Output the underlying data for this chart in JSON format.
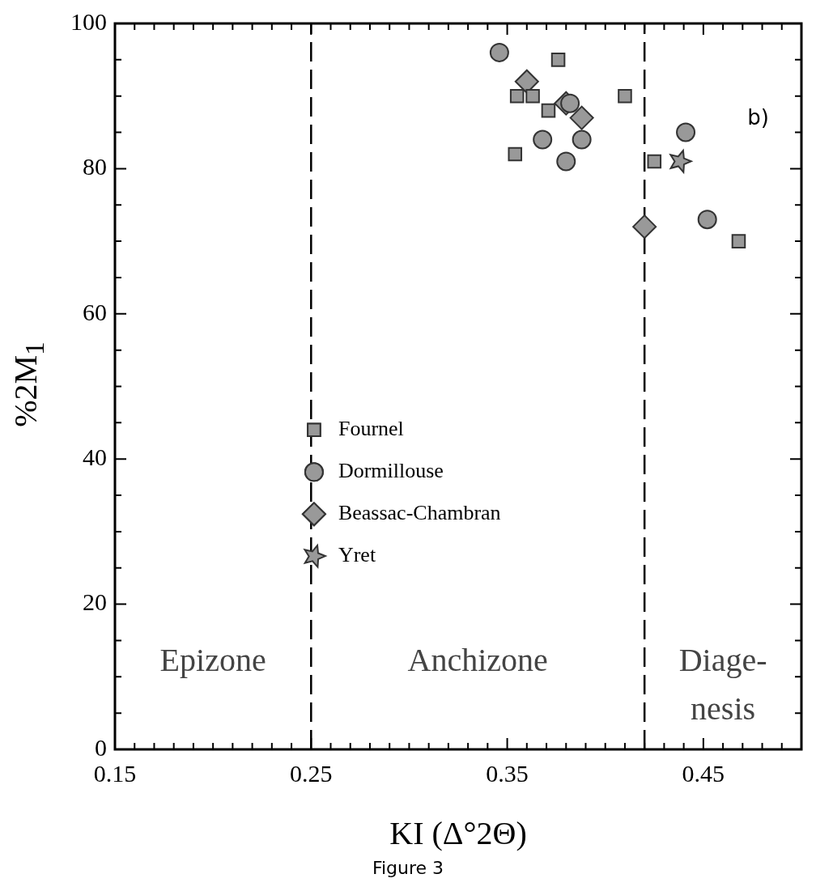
{
  "chart_data": {
    "type": "scatter",
    "xlabel": "KI (Δ°2Θ)",
    "ylabel": "%2M$_{1}$",
    "xlim": [
      0.15,
      0.5
    ],
    "ylim": [
      0,
      100
    ],
    "xticks": [
      {
        "value": 0.15,
        "label": "0.15"
      },
      {
        "value": 0.16,
        "label": null
      },
      {
        "value": 0.17,
        "label": null
      },
      {
        "value": 0.18,
        "label": null
      },
      {
        "value": 0.19,
        "label": null
      },
      {
        "value": 0.2,
        "label": null
      },
      {
        "value": 0.21,
        "label": null
      },
      {
        "value": 0.22,
        "label": null
      },
      {
        "value": 0.23,
        "label": null
      },
      {
        "value": 0.24,
        "label": null
      },
      {
        "value": 0.25,
        "label": "0.25"
      },
      {
        "value": 0.26,
        "label": null
      },
      {
        "value": 0.27,
        "label": null
      },
      {
        "value": 0.28,
        "label": null
      },
      {
        "value": 0.29,
        "label": null
      },
      {
        "value": 0.3,
        "label": null
      },
      {
        "value": 0.31,
        "label": null
      },
      {
        "value": 0.32,
        "label": null
      },
      {
        "value": 0.33,
        "label": null
      },
      {
        "value": 0.34,
        "label": null
      },
      {
        "value": 0.35,
        "label": "0.35"
      },
      {
        "value": 0.36,
        "label": null
      },
      {
        "value": 0.37,
        "label": null
      },
      {
        "value": 0.38,
        "label": null
      },
      {
        "value": 0.39,
        "label": null
      },
      {
        "value": 0.4,
        "label": null
      },
      {
        "value": 0.41,
        "label": null
      },
      {
        "value": 0.42,
        "label": null
      },
      {
        "value": 0.43,
        "label": null
      },
      {
        "value": 0.44,
        "label": null
      },
      {
        "value": 0.45,
        "label": "0.45"
      },
      {
        "value": 0.46,
        "label": null
      },
      {
        "value": 0.47,
        "label": null
      },
      {
        "value": 0.48,
        "label": null
      },
      {
        "value": 0.49,
        "label": null
      },
      {
        "value": 0.5,
        "label": null
      }
    ],
    "yticks": [
      0,
      {
        "value": 5,
        "label": null
      },
      {
        "value": 10,
        "label": null
      },
      {
        "value": 15,
        "label": null
      },
      20,
      {
        "value": 25,
        "label": null
      },
      {
        "value": 30,
        "label": null
      },
      {
        "value": 35,
        "label": null
      },
      40,
      {
        "value": 45,
        "label": null
      },
      {
        "value": 50,
        "label": null
      },
      {
        "value": 55,
        "label": null
      },
      60,
      {
        "value": 65,
        "label": null
      },
      {
        "value": 70,
        "label": null
      },
      {
        "value": 75,
        "label": null
      },
      80,
      {
        "value": 85,
        "label": null
      },
      {
        "value": 90,
        "label": null
      },
      {
        "value": 95,
        "label": null
      },
      100
    ],
    "grid": false,
    "legend": "center",
    "series": [
      {
        "name": "Fournel",
        "marker": "square",
        "color": "#999999",
        "x": [
          0.376,
          0.355,
          0.363,
          0.371,
          0.354,
          0.41,
          0.425,
          0.468
        ],
        "values": [
          95,
          90,
          90,
          88,
          82,
          90,
          81,
          70
        ]
      },
      {
        "name": "Dormillouse",
        "marker": "circle",
        "color": "#999999",
        "x": [
          0.346,
          0.368,
          0.388,
          0.38,
          0.382,
          0.441,
          0.452
        ],
        "values": [
          96,
          84,
          84,
          81,
          89,
          85,
          73
        ]
      },
      {
        "name": "Beassac-Chambran",
        "marker": "diamond",
        "color": "#999999",
        "x": [
          0.36,
          0.38,
          0.388,
          0.42
        ],
        "values": [
          92,
          89,
          87,
          72
        ]
      },
      {
        "name": "Yret",
        "marker": "star",
        "color": "#999999",
        "x": [
          0.438
        ],
        "values": [
          81
        ]
      }
    ],
    "ref_lines": [
      {
        "axis": "x",
        "value": 0.25,
        "line_style": "dashed"
      },
      {
        "axis": "x",
        "value": 0.42,
        "line_style": "dashed"
      }
    ],
    "annotations": [
      "Epizone",
      "Anchizone",
      "Diage-\nnesis",
      "b)",
      "Figure 3"
    ]
  }
}
